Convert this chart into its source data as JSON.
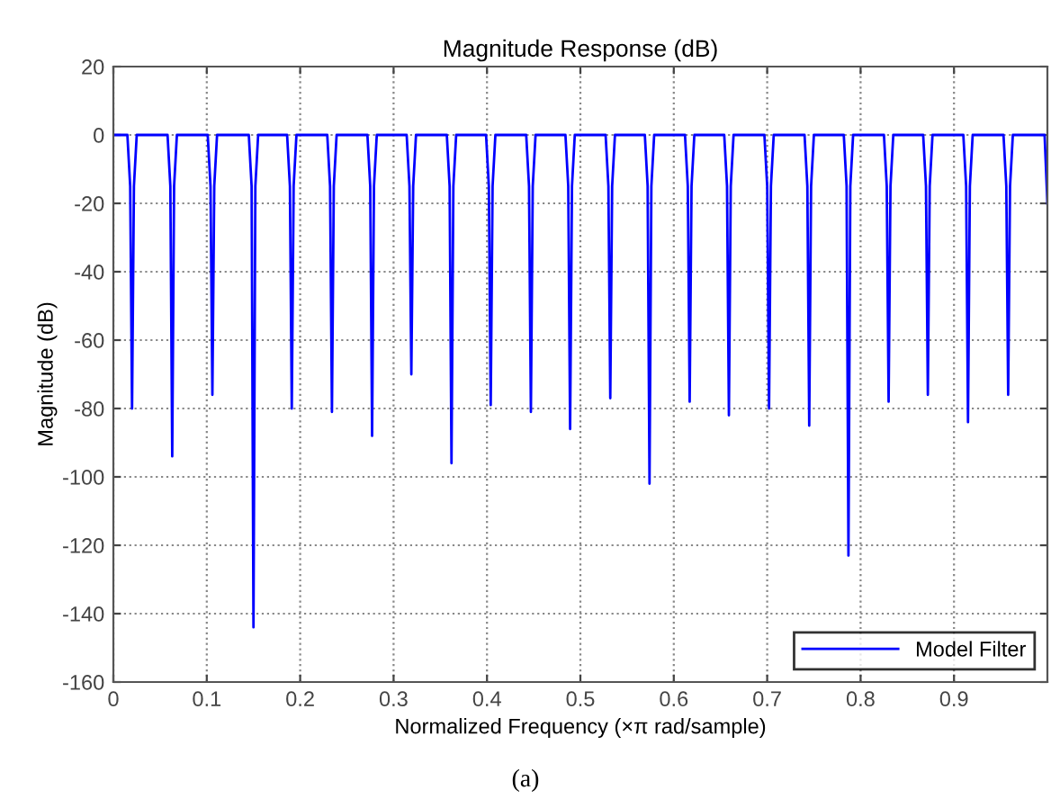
{
  "chart_data": {
    "type": "line",
    "title": "Magnitude Response (dB)",
    "xlabel": "Normalized Frequency (×π rad/sample)",
    "ylabel": "Magnitude (dB)",
    "xlim": [
      0,
      1
    ],
    "ylim": [
      -160,
      20
    ],
    "xticks": [
      0,
      0.1,
      0.2,
      0.3,
      0.4,
      0.5,
      0.6,
      0.7,
      0.8,
      0.9
    ],
    "yticks": [
      -160,
      -140,
      -120,
      -100,
      -80,
      -60,
      -40,
      -20,
      0,
      20
    ],
    "grid": true,
    "legend": "bottom right",
    "marker": "none",
    "line_style": "solid",
    "annotations": [
      "(a)"
    ],
    "series": [
      {
        "name": "Model Filter",
        "color": "#0000ff",
        "x": [
          0,
          0.015,
          0.018,
          0.02,
          0.022,
          0.025,
          0.058,
          0.061,
          0.063,
          0.065,
          0.068,
          0.101,
          0.104,
          0.106,
          0.108,
          0.111,
          0.145,
          0.148,
          0.15,
          0.152,
          0.155,
          0.186,
          0.189,
          0.191,
          0.193,
          0.196,
          0.229,
          0.232,
          0.234,
          0.236,
          0.239,
          0.272,
          0.275,
          0.277,
          0.279,
          0.282,
          0.314,
          0.317,
          0.319,
          0.321,
          0.324,
          0.357,
          0.36,
          0.362,
          0.364,
          0.367,
          0.399,
          0.402,
          0.404,
          0.406,
          0.409,
          0.442,
          0.445,
          0.447,
          0.449,
          0.452,
          0.484,
          0.487,
          0.489,
          0.491,
          0.494,
          0.527,
          0.53,
          0.532,
          0.534,
          0.537,
          0.569,
          0.572,
          0.574,
          0.576,
          0.579,
          0.612,
          0.615,
          0.617,
          0.619,
          0.622,
          0.654,
          0.657,
          0.659,
          0.661,
          0.664,
          0.697,
          0.7,
          0.702,
          0.704,
          0.707,
          0.74,
          0.743,
          0.745,
          0.747,
          0.75,
          0.782,
          0.785,
          0.787,
          0.789,
          0.792,
          0.825,
          0.828,
          0.83,
          0.832,
          0.835,
          0.867,
          0.87,
          0.872,
          0.874,
          0.877,
          0.91,
          0.913,
          0.915,
          0.917,
          0.92,
          0.953,
          0.956,
          0.958,
          0.96,
          0.963,
          0.997,
          1.0
        ],
        "values": [
          0,
          0,
          -15,
          -80,
          -15,
          0,
          0,
          -15,
          -94,
          -15,
          0,
          0,
          -15,
          -76,
          -15,
          0,
          0,
          -15,
          -144,
          -15,
          0,
          0,
          -15,
          -80,
          -15,
          0,
          0,
          -15,
          -81,
          -15,
          0,
          0,
          -15,
          -88,
          -15,
          0,
          0,
          -15,
          -70,
          -15,
          0,
          0,
          -15,
          -96,
          -15,
          0,
          0,
          -15,
          -79,
          -15,
          0,
          0,
          -15,
          -81,
          -15,
          0,
          0,
          -15,
          -86,
          -15,
          0,
          0,
          -15,
          -77,
          -15,
          0,
          0,
          -15,
          -102,
          -15,
          0,
          0,
          -15,
          -78,
          -15,
          0,
          0,
          -15,
          -82,
          -15,
          0,
          0,
          -15,
          -80,
          -15,
          0,
          0,
          -15,
          -85,
          -15,
          0,
          0,
          -15,
          -123,
          -15,
          0,
          0,
          -15,
          -78,
          -15,
          0,
          0,
          -15,
          -76,
          -15,
          0,
          0,
          -15,
          -84,
          -15,
          0,
          0,
          -15,
          -76,
          -15,
          0,
          0,
          -20
        ]
      }
    ]
  }
}
